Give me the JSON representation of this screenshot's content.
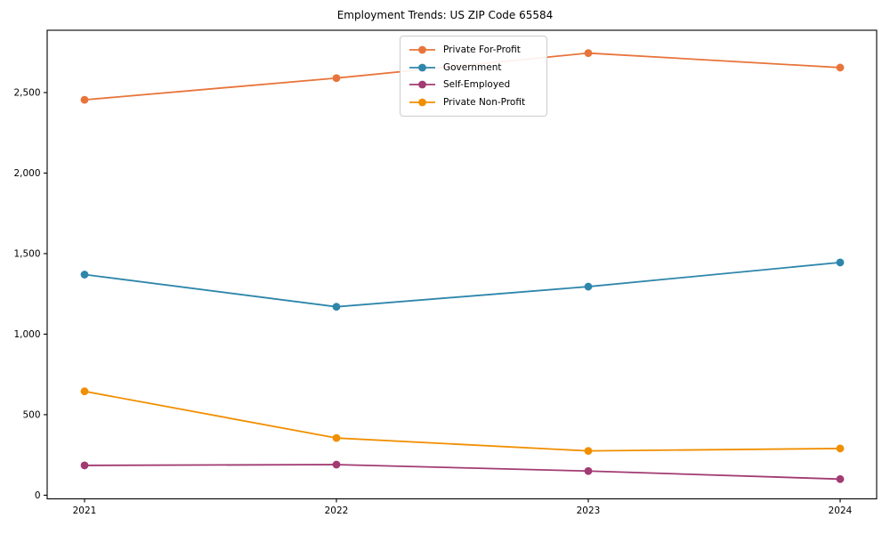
{
  "chart_data": {
    "type": "line",
    "title": "Employment Trends: US ZIP Code 65584",
    "xlabel": "",
    "ylabel": "",
    "categories": [
      "2021",
      "2022",
      "2023",
      "2024"
    ],
    "series": [
      {
        "name": "Private For-Profit",
        "color": "#E8743B",
        "values": [
          2455,
          2590,
          2745,
          2655
        ]
      },
      {
        "name": "Government",
        "color": "#2E86AB",
        "values": [
          1370,
          1170,
          1295,
          1445
        ]
      },
      {
        "name": "Self-Employed",
        "color": "#A23B72",
        "values": [
          185,
          190,
          150,
          100
        ]
      },
      {
        "name": "Private Non-Profit",
        "color": "#F18F01",
        "values": [
          645,
          355,
          275,
          290
        ]
      }
    ],
    "yticks": [
      0,
      500,
      1000,
      1500,
      2000,
      2500
    ],
    "ylim": [
      0,
      2890
    ],
    "grid": false,
    "legend_position": "upper center",
    "axis_color": "#000000"
  }
}
